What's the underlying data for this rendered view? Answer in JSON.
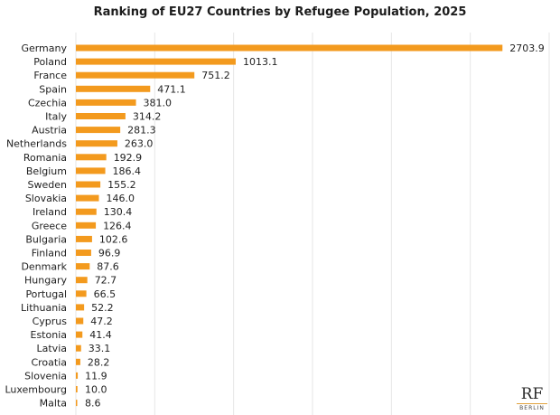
{
  "chart_data": {
    "type": "bar",
    "orientation": "horizontal",
    "title": "Ranking of EU27 Countries by Refugee Population, 2025",
    "xlabel": "",
    "ylabel": "",
    "xlim": [
      0,
      3000
    ],
    "grid": true,
    "bar_color": "#f39a1e",
    "categories": [
      "Germany",
      "Poland",
      "France",
      "Spain",
      "Czechia",
      "Italy",
      "Austria",
      "Netherlands",
      "Romania",
      "Belgium",
      "Sweden",
      "Slovakia",
      "Ireland",
      "Greece",
      "Bulgaria",
      "Finland",
      "Denmark",
      "Hungary",
      "Portugal",
      "Lithuania",
      "Cyprus",
      "Estonia",
      "Latvia",
      "Croatia",
      "Slovenia",
      "Luxembourg",
      "Malta"
    ],
    "values": [
      2703.9,
      1013.1,
      751.2,
      471.1,
      381.0,
      314.2,
      281.3,
      263.0,
      192.9,
      186.4,
      155.2,
      146.0,
      130.4,
      126.4,
      102.6,
      96.9,
      87.6,
      72.7,
      66.5,
      52.2,
      47.2,
      41.4,
      33.1,
      28.2,
      11.9,
      10.0,
      8.6
    ],
    "value_labels": [
      "2703.9",
      "1013.1",
      "751.2",
      "471.1",
      "381.0",
      "314.2",
      "281.3",
      "263.0",
      "192.9",
      "186.4",
      "155.2",
      "146.0",
      "130.4",
      "126.4",
      "102.6",
      "96.9",
      "87.6",
      "72.7",
      "66.5",
      "52.2",
      "47.2",
      "41.4",
      "33.1",
      "28.2",
      "11.9",
      "10.0",
      "8.6"
    ]
  },
  "logo": {
    "mark": "RF",
    "sub": "BERLIN"
  }
}
